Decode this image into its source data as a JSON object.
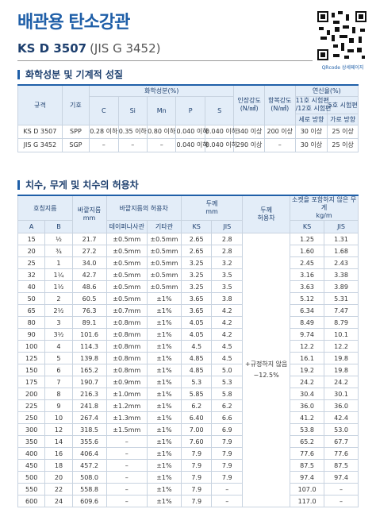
{
  "header": {
    "title": "배관용 탄소강관",
    "standard": "KS D 3507",
    "standard_alt": "(JIS G 3452)",
    "qr_caption": "QRcode 상세페이지"
  },
  "section1": {
    "title": "화학성분 및 기계적 성질",
    "headers": [
      "규격",
      "기호",
      "화학성분(%)",
      "C",
      "Si",
      "Mn",
      "P",
      "S",
      "인장강도",
      "(N/㎟)",
      "항복강도",
      "(N/㎟)",
      "연신율(%)",
      "11호 시험편",
      "/12호 시험편",
      "5호 시험편",
      "세로 방향",
      "가로 방향"
    ],
    "rows": [
      [
        "KS D 3507",
        "SPP",
        "0.28 이하",
        "0.35 이하",
        "0.80 이하",
        "0.040 이하",
        "0.040 이하",
        "340 이상",
        "200 이상",
        "30 이상",
        "25 이상"
      ],
      [
        "JIS G 3452",
        "SGP",
        "–",
        "–",
        "–",
        "0.040 이하",
        "0.040 이하",
        "290 이상",
        "–",
        "30 이상",
        "25 이상"
      ]
    ]
  },
  "section2": {
    "title": "치수, 무게 및 치수의 허용차",
    "headers": [
      "호칭지름",
      "바깥지름",
      "mm",
      "바깥지름의 허용차",
      "두께",
      "mm",
      "두께",
      "허용차",
      "소켓을 포함하지 않은 무게",
      "kg/m",
      "A",
      "B",
      "테이퍼나사관",
      "기타관",
      "KS",
      "JIS",
      "KS",
      "JIS"
    ],
    "thickness_tolerance": [
      "+규정하지 않음",
      "−12.5%"
    ],
    "rows": [
      [
        "15",
        "½",
        "21.7",
        "±0.5mm",
        "±0.5mm",
        "2.65",
        "2.8",
        "1.25",
        "1.31"
      ],
      [
        "20",
        "¾",
        "27.2",
        "±0.5mm",
        "±0.5mm",
        "2.65",
        "2.8",
        "1.60",
        "1.68"
      ],
      [
        "25",
        "1",
        "34.0",
        "±0.5mm",
        "±0.5mm",
        "3.25",
        "3.2",
        "2.45",
        "2.43"
      ],
      [
        "32",
        "1¼",
        "42.7",
        "±0.5mm",
        "±0.5mm",
        "3.25",
        "3.5",
        "3.16",
        "3.38"
      ],
      [
        "40",
        "1½",
        "48.6",
        "±0.5mm",
        "±0.5mm",
        "3.25",
        "3.5",
        "3.63",
        "3.89"
      ],
      [
        "50",
        "2",
        "60.5",
        "±0.5mm",
        "±1%",
        "3.65",
        "3.8",
        "5.12",
        "5.31"
      ],
      [
        "65",
        "2½",
        "76.3",
        "±0.7mm",
        "±1%",
        "3.65",
        "4.2",
        "6.34",
        "7.47"
      ],
      [
        "80",
        "3",
        "89.1",
        "±0.8mm",
        "±1%",
        "4.05",
        "4.2",
        "8.49",
        "8.79"
      ],
      [
        "90",
        "3½",
        "101.6",
        "±0.8mm",
        "±1%",
        "4.05",
        "4.2",
        "9.74",
        "10.1"
      ],
      [
        "100",
        "4",
        "114.3",
        "±0.8mm",
        "±1%",
        "4.5",
        "4.5",
        "12.2",
        "12.2"
      ],
      [
        "125",
        "5",
        "139.8",
        "±0.8mm",
        "±1%",
        "4.85",
        "4.5",
        "16.1",
        "19.8"
      ],
      [
        "150",
        "6",
        "165.2",
        "±0.8mm",
        "±1%",
        "4.85",
        "5.0",
        "19.2",
        "19.8"
      ],
      [
        "175",
        "7",
        "190.7",
        "±0.9mm",
        "±1%",
        "5.3",
        "5.3",
        "24.2",
        "24.2"
      ],
      [
        "200",
        "8",
        "216.3",
        "±1.0mm",
        "±1%",
        "5.85",
        "5.8",
        "30.4",
        "30.1"
      ],
      [
        "225",
        "9",
        "241.8",
        "±1.2mm",
        "±1%",
        "6.2",
        "6.2",
        "36.0",
        "36.0"
      ],
      [
        "250",
        "10",
        "267.4",
        "±1.3mm",
        "±1%",
        "6.40",
        "6.6",
        "41.2",
        "42.4"
      ],
      [
        "300",
        "12",
        "318.5",
        "±1.5mm",
        "±1%",
        "7.00",
        "6.9",
        "53.8",
        "53.0"
      ],
      [
        "350",
        "14",
        "355.6",
        "–",
        "±1%",
        "7.60",
        "7.9",
        "65.2",
        "67.7"
      ],
      [
        "400",
        "16",
        "406.4",
        "–",
        "±1%",
        "7.9",
        "7.9",
        "77.6",
        "77.6"
      ],
      [
        "450",
        "18",
        "457.2",
        "–",
        "±1%",
        "7.9",
        "7.9",
        "87.5",
        "87.5"
      ],
      [
        "500",
        "20",
        "508.0",
        "–",
        "±1%",
        "7.9",
        "7.9",
        "97.4",
        "97.4"
      ],
      [
        "550",
        "22",
        "558.8",
        "–",
        "±1%",
        "7.9",
        "–",
        "107.0",
        "–"
      ],
      [
        "600",
        "24",
        "609.6",
        "–",
        "±1%",
        "7.9",
        "–",
        "117.0",
        "–"
      ]
    ]
  }
}
